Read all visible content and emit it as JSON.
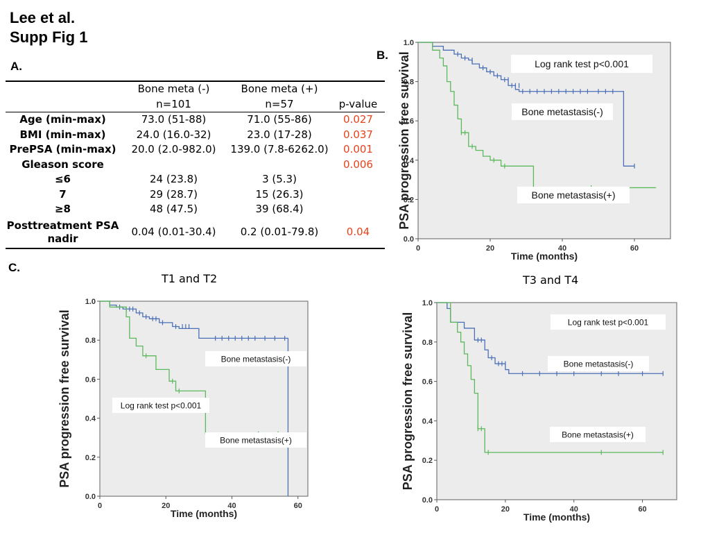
{
  "header": {
    "line1": "Lee et al.",
    "line2": "Supp Fig 1"
  },
  "panel_labels": {
    "a": "A.",
    "b": "B.",
    "c": "C."
  },
  "table": {
    "columns": [
      {
        "line1": "",
        "line2": ""
      },
      {
        "line1": "Bone meta (-)",
        "line2": "n=101"
      },
      {
        "line1": "Bone meta (+)",
        "line2": "n=57"
      },
      {
        "line1": "",
        "line2": "p-value"
      }
    ],
    "rows": [
      {
        "label": "Age (min-max)",
        "neg": "73.0 (51-88)",
        "pos": "71.0 (55-86)",
        "p": "0.027"
      },
      {
        "label": "BMI (min-max)",
        "neg": "24.0 (16.0-32)",
        "pos": "23.0 (17-28)",
        "p": "0.037"
      },
      {
        "label": "PrePSA (min-max)",
        "neg": "20.0 (2.0-982.0)",
        "pos": "139.0 (7.8-6262.0)",
        "p": "0.001"
      },
      {
        "label": "Gleason score",
        "neg": "",
        "pos": "",
        "p": "0.006"
      },
      {
        "label": "≤6",
        "neg": "24 (23.8)",
        "pos": "3 (5.3)",
        "p": ""
      },
      {
        "label": "7",
        "neg": "29 (28.7)",
        "pos": "15 (26.3)",
        "p": ""
      },
      {
        "label": "≥8",
        "neg": "48 (47.5)",
        "pos": "39 (68.4)",
        "p": ""
      },
      {
        "label": "Posttreatment PSA nadir",
        "neg": "0.04 (0.01-30.4)",
        "pos": "0.2 (0.01-79.8)",
        "p": "0.04"
      }
    ],
    "p_color": "#e8421c"
  },
  "chart_data": [
    {
      "id": "B",
      "type": "line",
      "title": "",
      "xlabel": "Time (months)",
      "ylabel": "PSA progression free survival",
      "xlim": [
        0,
        70
      ],
      "ylim": [
        0,
        1.0
      ],
      "xticks": [
        0,
        20,
        40,
        60
      ],
      "yticks": [
        "0.0",
        "0.2",
        "0.4",
        "0.6",
        "0.8",
        "1.0"
      ],
      "annotations": [
        "Log rank test p<0.001",
        "Bone metastasis(-)",
        "Bone metastasis(+)"
      ],
      "series": [
        {
          "name": "Bone metastasis(-)",
          "color": "#4a6fb5",
          "steps": [
            [
              0,
              1.0
            ],
            [
              4,
              0.98
            ],
            [
              7,
              0.96
            ],
            [
              10,
              0.94
            ],
            [
              12,
              0.92
            ],
            [
              14,
              0.91
            ],
            [
              15,
              0.89
            ],
            [
              17,
              0.87
            ],
            [
              19,
              0.85
            ],
            [
              21,
              0.83
            ],
            [
              23,
              0.81
            ],
            [
              25,
              0.78
            ],
            [
              27,
              0.76
            ],
            [
              28,
              0.75
            ],
            [
              57,
              0.37
            ],
            [
              60,
              0.37
            ]
          ],
          "censors": [
            [
              11,
              0.94
            ],
            [
              13,
              0.92
            ],
            [
              15,
              0.91
            ],
            [
              18,
              0.87
            ],
            [
              20,
              0.85
            ],
            [
              22,
              0.83
            ],
            [
              24,
              0.81
            ],
            [
              25,
              0.81
            ],
            [
              26,
              0.78
            ],
            [
              27,
              0.78
            ],
            [
              28,
              0.78
            ],
            [
              29,
              0.75
            ],
            [
              31,
              0.75
            ],
            [
              33,
              0.75
            ],
            [
              35,
              0.75
            ],
            [
              37,
              0.75
            ],
            [
              39,
              0.75
            ],
            [
              41,
              0.75
            ],
            [
              43,
              0.75
            ],
            [
              45,
              0.75
            ],
            [
              47,
              0.75
            ],
            [
              50,
              0.75
            ],
            [
              52,
              0.75
            ],
            [
              54,
              0.75
            ],
            [
              60,
              0.37
            ]
          ]
        },
        {
          "name": "Bone metastasis(+)",
          "color": "#5bb85b",
          "steps": [
            [
              0,
              1.0
            ],
            [
              4,
              0.96
            ],
            [
              6,
              0.92
            ],
            [
              7,
              0.88
            ],
            [
              8,
              0.8
            ],
            [
              9,
              0.75
            ],
            [
              10,
              0.68
            ],
            [
              11,
              0.61
            ],
            [
              12,
              0.54
            ],
            [
              14,
              0.47
            ],
            [
              16,
              0.45
            ],
            [
              18,
              0.42
            ],
            [
              20,
              0.4
            ],
            [
              23,
              0.37
            ],
            [
              32,
              0.26
            ],
            [
              66,
              0.26
            ]
          ],
          "censors": [
            [
              12,
              0.54
            ],
            [
              13,
              0.54
            ],
            [
              15,
              0.47
            ],
            [
              21,
              0.4
            ],
            [
              24,
              0.37
            ],
            [
              48,
              0.26
            ]
          ]
        }
      ]
    },
    {
      "id": "C1",
      "type": "line",
      "title": "T1 and T2",
      "xlabel": "Time (months)",
      "ylabel": "PSA progression free survival",
      "xlim": [
        0,
        63
      ],
      "ylim": [
        0,
        1.0
      ],
      "xticks": [
        0,
        20,
        40,
        60
      ],
      "yticks": [
        "0.0",
        "0.2",
        "0.4",
        "0.6",
        "0.8",
        "1.0"
      ],
      "annotations": [
        "Bone metastasis(-)",
        "Log rank test p<0.001",
        "Bone metastasis(+)"
      ],
      "series": [
        {
          "name": "Bone metastasis(-)",
          "color": "#4a6fb5",
          "steps": [
            [
              0,
              1.0
            ],
            [
              3,
              0.98
            ],
            [
              5,
              0.97
            ],
            [
              7,
              0.96
            ],
            [
              11,
              0.94
            ],
            [
              13,
              0.92
            ],
            [
              15,
              0.91
            ],
            [
              18,
              0.89
            ],
            [
              22,
              0.87
            ],
            [
              24,
              0.86
            ],
            [
              30,
              0.81
            ],
            [
              57,
              0.0
            ]
          ],
          "censors": [
            [
              6,
              0.97
            ],
            [
              8,
              0.96
            ],
            [
              9,
              0.96
            ],
            [
              10,
              0.96
            ],
            [
              12,
              0.94
            ],
            [
              14,
              0.92
            ],
            [
              16,
              0.91
            ],
            [
              17,
              0.91
            ],
            [
              19,
              0.89
            ],
            [
              23,
              0.87
            ],
            [
              25,
              0.87
            ],
            [
              26,
              0.87
            ],
            [
              27,
              0.87
            ],
            [
              35,
              0.81
            ],
            [
              37,
              0.81
            ],
            [
              39,
              0.81
            ],
            [
              41,
              0.81
            ],
            [
              43,
              0.81
            ],
            [
              45,
              0.81
            ],
            [
              47,
              0.81
            ],
            [
              50,
              0.81
            ],
            [
              53,
              0.81
            ],
            [
              56,
              0.81
            ]
          ]
        },
        {
          "name": "Bone metastasis(+)",
          "color": "#5bb85b",
          "steps": [
            [
              0,
              1.0
            ],
            [
              3,
              0.97
            ],
            [
              8,
              0.92
            ],
            [
              9,
              0.81
            ],
            [
              11,
              0.77
            ],
            [
              13,
              0.72
            ],
            [
              17,
              0.65
            ],
            [
              21,
              0.59
            ],
            [
              23,
              0.54
            ],
            [
              32,
              0.32
            ],
            [
              54,
              0.32
            ]
          ],
          "censors": [
            [
              14,
              0.72
            ],
            [
              22,
              0.59
            ],
            [
              24,
              0.54
            ],
            [
              48,
              0.32
            ],
            [
              54,
              0.32
            ]
          ]
        }
      ]
    },
    {
      "id": "C2",
      "type": "line",
      "title": "T3 and T4",
      "xlabel": "Time (months)",
      "ylabel": "PSA progression free survival",
      "xlim": [
        0,
        70
      ],
      "ylim": [
        0,
        1.0
      ],
      "xticks": [
        0,
        20,
        40,
        60
      ],
      "yticks": [
        "0.0",
        "0.2",
        "0.4",
        "0.6",
        "0.8",
        "1.0"
      ],
      "annotations": [
        "Log rank test p<0.001",
        "Bone metastasis(-)",
        "Bone metastasis(+)"
      ],
      "series": [
        {
          "name": "Bone metastasis(-)",
          "color": "#4a6fb5",
          "steps": [
            [
              0,
              1.0
            ],
            [
              3,
              0.97
            ],
            [
              4,
              0.9
            ],
            [
              8,
              0.87
            ],
            [
              11,
              0.81
            ],
            [
              14,
              0.76
            ],
            [
              15,
              0.72
            ],
            [
              17,
              0.69
            ],
            [
              20,
              0.66
            ],
            [
              21,
              0.64
            ],
            [
              66,
              0.64
            ]
          ],
          "censors": [
            [
              12,
              0.81
            ],
            [
              13,
              0.81
            ],
            [
              16,
              0.72
            ],
            [
              18,
              0.69
            ],
            [
              19,
              0.69
            ],
            [
              20,
              0.69
            ],
            [
              25,
              0.64
            ],
            [
              30,
              0.64
            ],
            [
              35,
              0.64
            ],
            [
              40,
              0.64
            ],
            [
              48,
              0.64
            ],
            [
              53,
              0.64
            ],
            [
              60,
              0.64
            ],
            [
              66,
              0.64
            ]
          ]
        },
        {
          "name": "Bone metastasis(+)",
          "color": "#5bb85b",
          "steps": [
            [
              0,
              1.0
            ],
            [
              4,
              0.9
            ],
            [
              6,
              0.85
            ],
            [
              7,
              0.8
            ],
            [
              8,
              0.74
            ],
            [
              9,
              0.68
            ],
            [
              10,
              0.61
            ],
            [
              11,
              0.54
            ],
            [
              12,
              0.36
            ],
            [
              14,
              0.24
            ],
            [
              66,
              0.24
            ]
          ],
          "censors": [
            [
              12,
              0.36
            ],
            [
              13,
              0.36
            ],
            [
              15,
              0.24
            ],
            [
              48,
              0.24
            ],
            [
              66,
              0.24
            ]
          ]
        }
      ]
    }
  ]
}
